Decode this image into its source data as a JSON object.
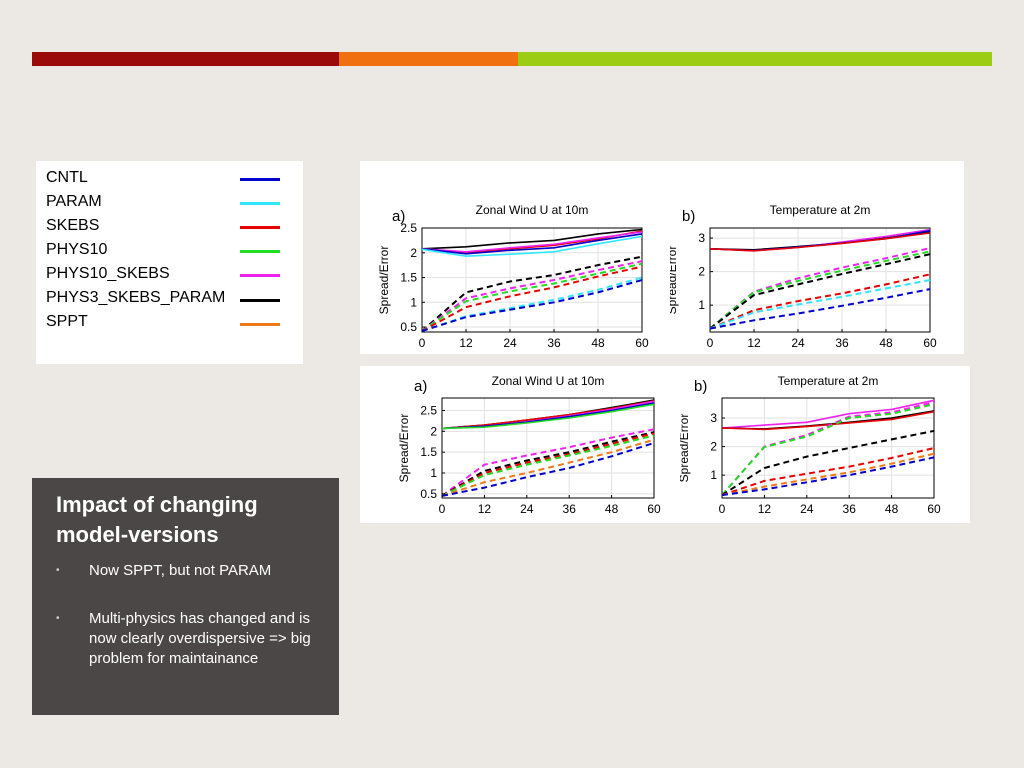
{
  "slide": {
    "title": "Impact of changing model-versions",
    "bullets": [
      "Now SPPT, but not PARAM",
      "Multi-physics has changed and is now clearly overdispersive => big problem for maintainance"
    ],
    "topbar_colors": [
      "#9b0a0a",
      "#f07010",
      "#9ccc14"
    ]
  },
  "legend": [
    {
      "label": "CNTL",
      "color": "#0000cc"
    },
    {
      "label": "PARAM",
      "color": "#33e6ff"
    },
    {
      "label": "SKEBS",
      "color": "#e60000"
    },
    {
      "label": "PHYS10",
      "color": "#22dd22"
    },
    {
      "label": "PHYS10_SKEBS",
      "color": "#ee22ee"
    },
    {
      "label": "PHYS3_SKEBS_PARAM",
      "color": "#000000"
    },
    {
      "label": "SPPT",
      "color": "#f07a1a"
    }
  ],
  "chart_data": [
    {
      "type": "line",
      "panel_label": "a)",
      "title": "Zonal Wind U at 10m",
      "ylabel": "Spread/Error",
      "x": [
        0,
        12,
        24,
        36,
        48,
        60
      ],
      "xticks": [
        "0",
        "12",
        "24",
        "36",
        "48",
        "60"
      ],
      "ylim": [
        0.4,
        2.5
      ],
      "yticks": [
        0.5,
        1,
        1.5,
        2,
        2.5
      ],
      "ytick_labels": [
        "0.5",
        "1",
        "1.5",
        "2",
        "2.5"
      ],
      "grid": true,
      "series": [
        {
          "name": "PHYS3_SKEBS_PARAM",
          "color": "#000000",
          "style": "solid",
          "values": [
            2.08,
            2.12,
            2.2,
            2.25,
            2.38,
            2.47
          ]
        },
        {
          "name": "SKEBS",
          "color": "#e60000",
          "style": "solid",
          "values": [
            2.08,
            2.0,
            2.08,
            2.15,
            2.28,
            2.44
          ]
        },
        {
          "name": "PHYS10_SKEBS",
          "color": "#ee22ee",
          "style": "solid",
          "values": [
            2.08,
            2.02,
            2.1,
            2.17,
            2.3,
            2.42
          ]
        },
        {
          "name": "CNTL",
          "color": "#0000cc",
          "style": "solid",
          "values": [
            2.08,
            1.98,
            2.05,
            2.1,
            2.25,
            2.38
          ]
        },
        {
          "name": "PARAM",
          "color": "#33e6ff",
          "style": "solid",
          "values": [
            2.07,
            1.93,
            1.97,
            2.02,
            2.18,
            2.33
          ]
        },
        {
          "name": "PHYS3_SKEBS_PARAM",
          "color": "#000000",
          "style": "dashed",
          "values": [
            0.42,
            1.2,
            1.42,
            1.55,
            1.75,
            1.92
          ]
        },
        {
          "name": "PHYS10_SKEBS",
          "color": "#ee22ee",
          "style": "dashed",
          "values": [
            0.42,
            1.08,
            1.28,
            1.45,
            1.65,
            1.83
          ]
        },
        {
          "name": "PHYS10",
          "color": "#22dd22",
          "style": "dashed",
          "values": [
            0.42,
            1.02,
            1.22,
            1.38,
            1.58,
            1.78
          ]
        },
        {
          "name": "SKEBS",
          "color": "#e60000",
          "style": "dashed",
          "values": [
            0.42,
            0.9,
            1.12,
            1.3,
            1.52,
            1.72
          ]
        },
        {
          "name": "PARAM",
          "color": "#33e6ff",
          "style": "dashed",
          "values": [
            0.42,
            0.72,
            0.88,
            1.05,
            1.25,
            1.5
          ]
        },
        {
          "name": "CNTL",
          "color": "#0000cc",
          "style": "dashed",
          "values": [
            0.42,
            0.7,
            0.85,
            1.0,
            1.2,
            1.45
          ]
        }
      ]
    },
    {
      "type": "line",
      "panel_label": "b)",
      "title": "Temperature at 2m",
      "ylabel": "Spread/Error",
      "x": [
        0,
        12,
        24,
        36,
        48,
        60
      ],
      "xticks": [
        "0",
        "12",
        "24",
        "36",
        "48",
        "60"
      ],
      "ylim": [
        0.2,
        3.3
      ],
      "yticks": [
        1,
        2,
        3
      ],
      "ytick_labels": [
        "1",
        "2",
        "3"
      ],
      "grid": true,
      "series": [
        {
          "name": "PHYS3_SKEBS_PARAM",
          "color": "#000000",
          "style": "solid",
          "values": [
            2.68,
            2.65,
            2.75,
            2.85,
            3.0,
            3.2
          ]
        },
        {
          "name": "PHYS10_SKEBS",
          "color": "#ee22ee",
          "style": "solid",
          "values": [
            2.68,
            2.62,
            2.72,
            2.88,
            3.05,
            3.25
          ]
        },
        {
          "name": "CNTL",
          "color": "#0000cc",
          "style": "solid",
          "values": [
            2.68,
            2.63,
            2.73,
            2.85,
            2.98,
            3.22
          ]
        },
        {
          "name": "SKEBS",
          "color": "#e60000",
          "style": "solid",
          "values": [
            2.68,
            2.62,
            2.72,
            2.84,
            2.98,
            3.15
          ]
        },
        {
          "name": "PHYS10_SKEBS",
          "color": "#ee22ee",
          "style": "dashed",
          "values": [
            0.3,
            1.4,
            1.8,
            2.12,
            2.4,
            2.7
          ]
        },
        {
          "name": "PHYS10",
          "color": "#22dd22",
          "style": "dashed",
          "values": [
            0.3,
            1.38,
            1.72,
            2.03,
            2.32,
            2.6
          ]
        },
        {
          "name": "PHYS3_SKEBS_PARAM",
          "color": "#000000",
          "style": "dashed",
          "values": [
            0.3,
            1.3,
            1.62,
            1.93,
            2.22,
            2.52
          ]
        },
        {
          "name": "SKEBS",
          "color": "#e60000",
          "style": "dashed",
          "values": [
            0.3,
            0.85,
            1.12,
            1.35,
            1.62,
            1.92
          ]
        },
        {
          "name": "PARAM",
          "color": "#33e6ff",
          "style": "dashed",
          "values": [
            0.3,
            0.78,
            1.02,
            1.25,
            1.5,
            1.75
          ]
        },
        {
          "name": "CNTL",
          "color": "#0000cc",
          "style": "dashed",
          "values": [
            0.3,
            0.55,
            0.75,
            0.98,
            1.22,
            1.48
          ]
        }
      ]
    },
    {
      "type": "line",
      "panel_label": "a)",
      "title": "Zonal Wind U at 10m",
      "ylabel": "Spread/Error",
      "x": [
        0,
        12,
        24,
        36,
        48,
        60
      ],
      "xticks": [
        "0",
        "12",
        "24",
        "36",
        "48",
        "60"
      ],
      "ylim": [
        0.4,
        2.8
      ],
      "yticks": [
        0.5,
        1,
        1.5,
        2,
        2.5
      ],
      "ytick_labels": [
        "0.5",
        "1",
        "1.5",
        "2",
        "2.5"
      ],
      "grid": true,
      "series": [
        {
          "name": "PHYS3_SKEBS_PARAM",
          "color": "#000000",
          "style": "solid",
          "values": [
            2.07,
            2.15,
            2.27,
            2.4,
            2.57,
            2.75
          ]
        },
        {
          "name": "SKEBS",
          "color": "#e60000",
          "style": "solid",
          "values": [
            2.07,
            2.15,
            2.27,
            2.4,
            2.55,
            2.73
          ]
        },
        {
          "name": "PHYS10_SKEBS",
          "color": "#ee22ee",
          "style": "solid",
          "values": [
            2.07,
            2.12,
            2.23,
            2.37,
            2.53,
            2.72
          ]
        },
        {
          "name": "CNTL",
          "color": "#0000cc",
          "style": "solid",
          "values": [
            2.07,
            2.12,
            2.22,
            2.35,
            2.5,
            2.68
          ]
        },
        {
          "name": "PHYS10",
          "color": "#22dd22",
          "style": "solid",
          "values": [
            2.07,
            2.1,
            2.2,
            2.32,
            2.47,
            2.65
          ]
        },
        {
          "name": "PHYS10_SKEBS",
          "color": "#ee22ee",
          "style": "dashed",
          "values": [
            0.45,
            1.2,
            1.42,
            1.62,
            1.85,
            2.05
          ]
        },
        {
          "name": "PHYS3_SKEBS_PARAM",
          "color": "#000000",
          "style": "dashed",
          "values": [
            0.45,
            1.05,
            1.3,
            1.5,
            1.75,
            1.98
          ]
        },
        {
          "name": "SKEBS",
          "color": "#e60000",
          "style": "dashed",
          "values": [
            0.45,
            1.0,
            1.25,
            1.45,
            1.7,
            1.95
          ]
        },
        {
          "name": "PHYS10",
          "color": "#22dd22",
          "style": "dashed",
          "values": [
            0.45,
            0.95,
            1.2,
            1.42,
            1.65,
            1.9
          ]
        },
        {
          "name": "SPPT",
          "color": "#f07a1a",
          "style": "dashed",
          "values": [
            0.45,
            0.78,
            1.0,
            1.25,
            1.5,
            1.8
          ]
        },
        {
          "name": "CNTL",
          "color": "#0000cc",
          "style": "dashed",
          "values": [
            0.45,
            0.65,
            0.9,
            1.12,
            1.4,
            1.72
          ]
        }
      ]
    },
    {
      "type": "line",
      "panel_label": "b)",
      "title": "Temperature at 2m",
      "ylabel": "Spread/Error",
      "x": [
        0,
        12,
        24,
        36,
        48,
        60
      ],
      "xticks": [
        "0",
        "12",
        "24",
        "36",
        "48",
        "60"
      ],
      "ylim": [
        0.2,
        3.7
      ],
      "yticks": [
        1,
        2,
        3
      ],
      "ytick_labels": [
        "1",
        "2",
        "3"
      ],
      "grid": true,
      "series": [
        {
          "name": "PHYS10_SKEBS",
          "color": "#ee22ee",
          "style": "solid",
          "values": [
            2.65,
            2.75,
            2.85,
            3.15,
            3.3,
            3.62
          ]
        },
        {
          "name": "PHYS3_SKEBS_PARAM",
          "color": "#000000",
          "style": "solid",
          "values": [
            2.65,
            2.62,
            2.72,
            2.85,
            3.0,
            3.25
          ]
        },
        {
          "name": "SKEBS",
          "color": "#e60000",
          "style": "solid",
          "values": [
            2.65,
            2.6,
            2.7,
            2.83,
            2.95,
            3.22
          ]
        },
        {
          "name": "PHYS10_SKEBS",
          "color": "#ee22ee",
          "style": "dashed",
          "values": [
            0.3,
            2.0,
            2.4,
            3.05,
            3.2,
            3.55
          ]
        },
        {
          "name": "PHYS10",
          "color": "#22dd22",
          "style": "dashed",
          "values": [
            0.3,
            1.98,
            2.35,
            3.0,
            3.15,
            3.48
          ]
        },
        {
          "name": "PHYS3_SKEBS_PARAM",
          "color": "#000000",
          "style": "dashed",
          "values": [
            0.3,
            1.25,
            1.65,
            1.95,
            2.25,
            2.55
          ]
        },
        {
          "name": "SKEBS",
          "color": "#e60000",
          "style": "dashed",
          "values": [
            0.3,
            0.8,
            1.05,
            1.3,
            1.6,
            1.95
          ]
        },
        {
          "name": "SPPT",
          "color": "#f07a1a",
          "style": "dashed",
          "values": [
            0.3,
            0.6,
            0.85,
            1.1,
            1.4,
            1.75
          ]
        },
        {
          "name": "CNTL",
          "color": "#0000cc",
          "style": "dashed",
          "values": [
            0.3,
            0.5,
            0.75,
            1.0,
            1.3,
            1.62
          ]
        }
      ]
    }
  ]
}
